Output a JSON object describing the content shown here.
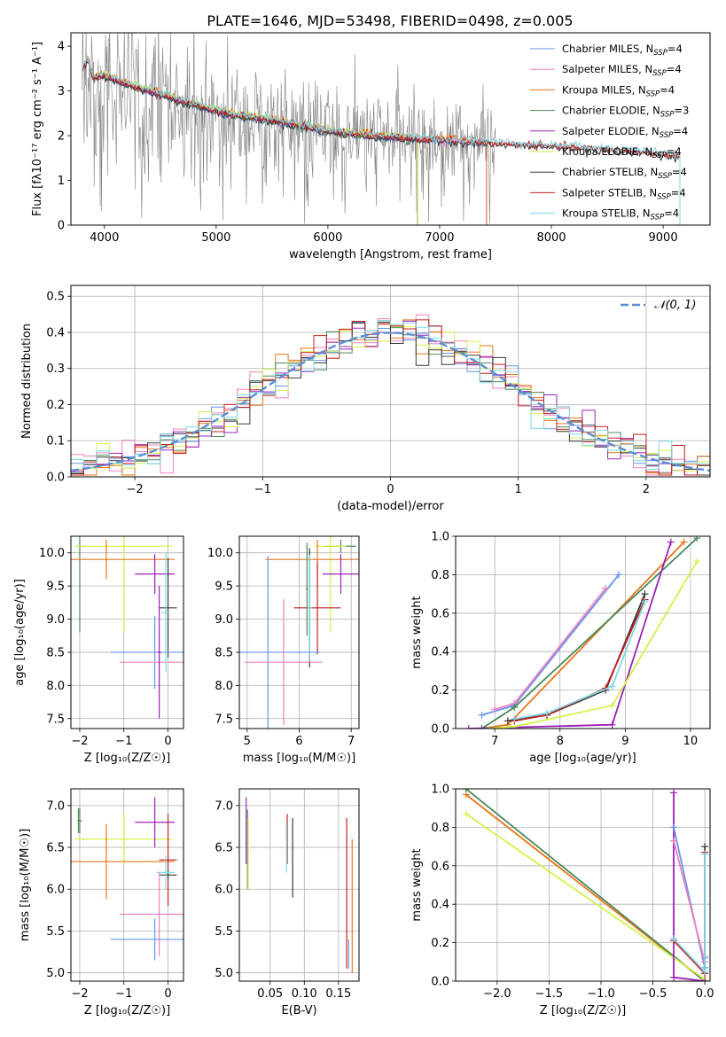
{
  "figure_title": "PLATE=1646, MJD=53498, FIBERID=0498, z=0.005",
  "colors": {
    "data_grey": "#808080",
    "c_chab_miles": "#6495ed",
    "c_salp_miles": "#f080c0",
    "c_krou_miles": "#e8761a",
    "c_chab_elod": "#4a8a5a",
    "c_salp_elod": "#9a22b8",
    "c_krou_elod": "#d4f24c",
    "c_chab_stel": "#3a3a3a",
    "c_salp_stel": "#c41f1f",
    "c_krou_stel": "#7fd8e6",
    "gauss": "#5a8fd8"
  },
  "chart_data": [
    {
      "id": "spectrum",
      "type": "line",
      "title": "PLATE=1646, MJD=53498, FIBERID=0498, z=0.005",
      "xlabel": "wavelength [Angstrom, rest frame]",
      "ylabel": "Flux [fλ10⁻¹⁷ erg cm⁻² s⁻¹ A⁻¹]",
      "xlim": [
        3700,
        9420
      ],
      "ylim": [
        0,
        4.3
      ],
      "xticks": [
        "4000",
        "5000",
        "6000",
        "7000",
        "8000",
        "9000"
      ],
      "yticks": [
        "0",
        "1",
        "2",
        "3",
        "4"
      ],
      "data_x": [
        3800,
        3900,
        4000,
        4200,
        4400,
        4600,
        4800,
        5000,
        5200,
        5500,
        5800,
        6000,
        6300,
        6600,
        6800,
        7000,
        7200,
        7400,
        7600,
        7800,
        8000,
        8300,
        8600,
        8900,
        9150
      ],
      "data_y": [
        3.3,
        3.1,
        3.3,
        3.0,
        2.9,
        2.75,
        2.6,
        2.45,
        2.35,
        2.3,
        2.15,
        2.05,
        2.0,
        1.95,
        1.9,
        1.87,
        1.85,
        1.82,
        1.8,
        1.78,
        1.75,
        1.72,
        1.65,
        1.6,
        1.5
      ],
      "model_x": [
        3800,
        3850,
        3900,
        4000,
        4200,
        4400,
        4600,
        4800,
        5000,
        5200,
        5500,
        5800,
        6000,
        6300,
        6600,
        6800,
        7000,
        7200,
        7400,
        7600,
        7800,
        8000,
        8300,
        8600,
        8900,
        9150
      ],
      "model_y": [
        3.5,
        3.7,
        3.3,
        3.35,
        3.15,
        3.0,
        2.85,
        2.7,
        2.55,
        2.45,
        2.35,
        2.2,
        2.1,
        2.02,
        1.97,
        1.93,
        1.9,
        1.88,
        1.85,
        1.82,
        1.8,
        1.77,
        1.73,
        1.68,
        1.62,
        1.55
      ],
      "series": [
        {
          "name": "Chabrier MILES, N_SSP=4",
          "label": "Chabrier MILES, N",
          "sub": "SSP",
          "tail": "=4",
          "color": "#6495ed",
          "x0": 3800,
          "x1": 7420
        },
        {
          "name": "Salpeter MILES, N_SSP=4",
          "label": "Salpeter MILES, N",
          "sub": "SSP",
          "tail": "=4",
          "color": "#f080c0",
          "x0": 3800,
          "x1": 7420
        },
        {
          "name": "Kroupa MILES, N_SSP=4",
          "label": "Kroupa MILES, N",
          "sub": "SSP",
          "tail": "=4",
          "color": "#e8761a",
          "x0": 3800,
          "x1": 7420
        },
        {
          "name": "Chabrier ELODIE, N_SSP=3",
          "label": "Chabrier ELODIE, N",
          "sub": "SSP",
          "tail": "=3",
          "color": "#4a8a5a",
          "x0": 3900,
          "x1": 6800
        },
        {
          "name": "Salpeter ELODIE, N_SSP=4",
          "label": "Salpeter ELODIE, N",
          "sub": "SSP",
          "tail": "=4",
          "color": "#9a22b8",
          "x0": 3900,
          "x1": 6800
        },
        {
          "name": "Kroupa ELODIE, N_SSP=4",
          "label": "Kroupa ELODIE, N",
          "sub": "SSP",
          "tail": "=4",
          "color": "#d4f24c",
          "x0": 3900,
          "x1": 6800
        },
        {
          "name": "Chabrier STELIB, N_SSP=4",
          "label": "Chabrier STELIB, N",
          "sub": "SSP",
          "tail": "=4",
          "color": "#3a3a3a",
          "x0": 3800,
          "x1": 9150
        },
        {
          "name": "Salpeter STELIB, N_SSP=4",
          "label": "Salpeter STELIB, N",
          "sub": "SSP",
          "tail": "=4",
          "color": "#c41f1f",
          "x0": 3800,
          "x1": 9150
        },
        {
          "name": "Kroupa STELIB, N_SSP=4",
          "label": "Kroupa STELIB, N",
          "sub": "SSP",
          "tail": "=4",
          "color": "#7fd8e6",
          "x0": 3800,
          "x1": 9150
        }
      ]
    },
    {
      "id": "histogram",
      "type": "line",
      "xlabel": "(data-model)/error",
      "ylabel": "Normed distribution",
      "xlim": [
        -2.5,
        2.5
      ],
      "ylim": [
        0,
        0.53
      ],
      "xticks": [
        "−2",
        "−1",
        "0",
        "1",
        "2"
      ],
      "yticks": [
        "0.0",
        "0.1",
        "0.2",
        "0.3",
        "0.4",
        "0.5"
      ],
      "legend": "𝒩(0, 1)",
      "bin_width": 0.1,
      "bin_centers": [
        -2.45,
        -2.35,
        -2.25,
        -2.15,
        -2.05,
        -1.95,
        -1.85,
        -1.75,
        -1.65,
        -1.55,
        -1.45,
        -1.35,
        -1.25,
        -1.15,
        -1.05,
        -0.95,
        -0.85,
        -0.75,
        -0.65,
        -0.55,
        -0.45,
        -0.35,
        -0.25,
        -0.15,
        -0.05,
        0.05,
        0.15,
        0.25,
        0.35,
        0.45,
        0.55,
        0.65,
        0.75,
        0.85,
        0.95,
        1.05,
        1.15,
        1.25,
        1.35,
        1.45,
        1.55,
        1.65,
        1.75,
        1.85,
        1.95,
        2.05,
        2.15,
        2.25,
        2.35,
        2.45
      ],
      "gauss_curve": "normal"
    },
    {
      "id": "age_Z",
      "type": "scatter",
      "xlabel": "Z [log₁₀(Z/Z☉)]",
      "ylabel": "age  [log₁₀(age/yr)]",
      "xlim": [
        -2.2,
        0.35
      ],
      "ylim": [
        7.35,
        10.25
      ],
      "xticks": [
        "−2",
        "−1",
        "0"
      ],
      "yticks": [
        "7.5",
        "8.0",
        "8.5",
        "9.0",
        "9.5",
        "10.0"
      ],
      "points": [
        {
          "color": "#4a8a5a",
          "x": -2.0,
          "xerr": 0.05,
          "y": 10.1,
          "yerr": 1.3,
          "xhalf": 3.0
        },
        {
          "color": "#d4f24c",
          "x": -1.0,
          "xerr": 1.1,
          "y": 10.1,
          "yerr": 1.3
        },
        {
          "color": "#e8761a",
          "x": -1.4,
          "xerr": 1.55,
          "y": 9.9,
          "yerr": 0.3
        },
        {
          "color": "#9a22b8",
          "x": -0.3,
          "xerr": 0.45,
          "y": 9.68,
          "yerr": 0.3
        },
        {
          "color": "#3a3a3a",
          "x": 0.0,
          "xerr": 0.2,
          "y": 9.17,
          "yerr": 0.75
        },
        {
          "color": "#6495ed",
          "x": -0.3,
          "xerr": 1.0,
          "y": 8.5,
          "yerr": 0.55
        },
        {
          "color": "#f080c0",
          "x": -0.2,
          "xerr": 0.9,
          "y": 8.35,
          "yerr": 0.4
        },
        {
          "color": "#7fd8e6",
          "x": -0.05,
          "xerr": 0.1,
          "y": 9.1,
          "yerr": 0.9
        },
        {
          "color": "#9a22b8",
          "x": -0.2,
          "xerr": 0.05,
          "y": 8.5,
          "yerr": 1.0
        }
      ]
    },
    {
      "id": "age_mass",
      "type": "scatter",
      "xlabel": "mass [log₁₀(M/M☉)]",
      "xlim": [
        4.85,
        7.15
      ],
      "ylim": [
        7.35,
        10.25
      ],
      "xticks": [
        "5",
        "6",
        "7"
      ],
      "yticks": [
        "7.5",
        "8.0",
        "8.5",
        "9.0",
        "9.5",
        "10.0"
      ],
      "points": [
        {
          "color": "#4a8a5a",
          "x": 6.8,
          "xerr": 0.3,
          "y": 10.1,
          "yerr": 0.1
        },
        {
          "color": "#d4f24c",
          "x": 6.6,
          "xerr": 0.3,
          "y": 10.1,
          "yerr": 1.3
        },
        {
          "color": "#e8761a",
          "x": 6.35,
          "xerr": 1.0,
          "y": 9.9,
          "yerr": 0.3
        },
        {
          "color": "#9a22b8",
          "x": 6.8,
          "xerr": 0.35,
          "y": 9.68,
          "yerr": 0.3
        },
        {
          "color": "#c41f1f",
          "x": 6.35,
          "xerr": 0.45,
          "y": 9.17,
          "yerr": 0.7
        },
        {
          "color": "#3a3a3a",
          "x": 6.2,
          "xerr": 0.05,
          "y": 9.17,
          "yerr": 0.9
        },
        {
          "color": "#7fd8e6",
          "x": 6.2,
          "xerr": 0.05,
          "y": 9.17,
          "yerr": 0.8
        },
        {
          "color": "#6495ed",
          "x": 5.4,
          "xerr": 1.0,
          "y": 8.5,
          "yerr": 1.45
        },
        {
          "color": "#f080c0",
          "x": 5.7,
          "xerr": 0.75,
          "y": 8.35,
          "yerr": 0.95
        },
        {
          "color": "#4a8a5a",
          "x": 6.15,
          "xerr": 0.02,
          "y": 9.45,
          "yerr": 0.7
        }
      ]
    },
    {
      "id": "massweight_age",
      "type": "line",
      "xlabel": "age  [log₁₀(age/yr)]",
      "ylabel": "mass weight",
      "xlim": [
        6.4,
        10.3
      ],
      "ylim": [
        0,
        1
      ],
      "xticks": [
        "7",
        "8",
        "9",
        "10"
      ],
      "yticks": [
        "0.0",
        "0.2",
        "0.4",
        "0.6",
        "0.8",
        "1.0"
      ],
      "series": [
        {
          "color": "#6495ed",
          "x": [
            6.8,
            7.3,
            8.9
          ],
          "y": [
            0.07,
            0.12,
            0.8
          ]
        },
        {
          "color": "#f080c0",
          "x": [
            7.0,
            7.3,
            8.7
          ],
          "y": [
            0.1,
            0.13,
            0.73
          ]
        },
        {
          "color": "#e8761a",
          "x": [
            6.8,
            7.2,
            9.9
          ],
          "y": [
            0.0,
            0.02,
            0.97
          ]
        },
        {
          "color": "#4a8a5a",
          "x": [
            6.8,
            7.3,
            10.1
          ],
          "y": [
            0.0,
            0.11,
            0.99
          ]
        },
        {
          "color": "#9a22b8",
          "x": [
            6.6,
            8.8,
            9.7
          ],
          "y": [
            0.0,
            0.02,
            0.97
          ]
        },
        {
          "color": "#d4f24c",
          "x": [
            6.9,
            7.3,
            8.8,
            10.1
          ],
          "y": [
            0.0,
            0.01,
            0.12,
            0.87
          ]
        },
        {
          "color": "#3a3a3a",
          "x": [
            7.2,
            7.8,
            8.7,
            9.3
          ],
          "y": [
            0.04,
            0.07,
            0.2,
            0.7
          ]
        },
        {
          "color": "#c41f1f",
          "x": [
            7.3,
            7.8,
            8.7,
            9.3
          ],
          "y": [
            0.04,
            0.07,
            0.21,
            0.67
          ]
        },
        {
          "color": "#7fd8e6",
          "x": [
            7.3,
            7.8,
            8.8,
            9.3
          ],
          "y": [
            0.05,
            0.08,
            0.22,
            0.66
          ]
        }
      ]
    },
    {
      "id": "mass_Z",
      "type": "scatter",
      "xlabel": "Z [log₁₀(Z/Z☉)]",
      "ylabel": "mass [log₁₀(M/M☉)]",
      "xlim": [
        -2.2,
        0.35
      ],
      "ylim": [
        4.9,
        7.2
      ],
      "xticks": [
        "−2",
        "−1",
        "0"
      ],
      "yticks": [
        "5.0",
        "5.5",
        "6.0",
        "6.5",
        "7.0"
      ],
      "points": [
        {
          "color": "#4a8a5a",
          "x": -2.0,
          "xerr": 0.05,
          "y": 6.82,
          "yerr": 0.15
        },
        {
          "color": "#4a8a5a",
          "x": -2.03,
          "xerr": 0.02,
          "y": 6.82,
          "yerr": 0.15
        },
        {
          "color": "#d4f24c",
          "x": -1.0,
          "xerr": 1.1,
          "y": 6.6,
          "yerr": 0.3
        },
        {
          "color": "#e8761a",
          "x": -1.4,
          "xerr": 1.55,
          "y": 6.33,
          "yerr": 0.45
        },
        {
          "color": "#9a22b8",
          "x": -0.3,
          "xerr": 0.45,
          "y": 6.8,
          "yerr": 0.3
        },
        {
          "color": "#c41f1f",
          "x": 0.0,
          "xerr": 0.2,
          "y": 6.35,
          "yerr": 0.55
        },
        {
          "color": "#3a3a3a",
          "x": 0.0,
          "xerr": 0.2,
          "y": 6.17,
          "yerr": 0.05
        },
        {
          "color": "#7fd8e6",
          "x": -0.05,
          "xerr": 0.2,
          "y": 6.2,
          "yerr": 0.2
        },
        {
          "color": "#6495ed",
          "x": -0.3,
          "xerr": 1.0,
          "y": 5.4,
          "yerr": 0.25
        },
        {
          "color": "#f080c0",
          "x": -0.2,
          "xerr": 0.9,
          "y": 5.7,
          "yerr": 0.5
        }
      ]
    },
    {
      "id": "ebv",
      "type": "scatter",
      "xlabel": "E(B-V)",
      "xlim": [
        0.005,
        0.18
      ],
      "ylim": [
        4.9,
        7.2
      ],
      "xticks": [
        "0.05",
        "0.10",
        "0.15"
      ],
      "yticks": [
        "5.0",
        "5.5",
        "6.0",
        "6.5",
        "7.0"
      ],
      "bars": [
        {
          "color": "#9a22b8",
          "x": 0.015,
          "y0": 6.3,
          "y1": 7.1
        },
        {
          "color": "#4a8a5a",
          "x": 0.017,
          "y0": 6.0,
          "y1": 6.95
        },
        {
          "color": "#d4f24c",
          "x": 0.018,
          "y0": 6.0,
          "y1": 6.85
        },
        {
          "color": "#c41f1f",
          "x": 0.075,
          "y0": 6.3,
          "y1": 6.9
        },
        {
          "color": "#7fd8e6",
          "x": 0.074,
          "y0": 6.2,
          "y1": 6.8
        },
        {
          "color": "#3a3a3a",
          "x": 0.083,
          "y0": 5.9,
          "y1": 6.85
        },
        {
          "color": "#c41f1f",
          "x": 0.162,
          "y0": 5.05,
          "y1": 6.85
        },
        {
          "color": "#e8761a",
          "x": 0.17,
          "y0": 5.0,
          "y1": 6.6
        },
        {
          "color": "#6495ed",
          "x": 0.165,
          "y0": 5.05,
          "y1": 5.4
        }
      ]
    },
    {
      "id": "massweight_Z",
      "type": "line",
      "xlabel": "Z [log₁₀(Z/Z☉)]",
      "ylabel": "mass weight",
      "xlim": [
        -2.4,
        0.05
      ],
      "ylim": [
        0,
        1
      ],
      "xticks": [
        "−2.0",
        "−1.5",
        "−1.0",
        "−0.5",
        "0.0"
      ],
      "yticks": [
        "0.0",
        "0.2",
        "0.4",
        "0.6",
        "0.8",
        "1.0"
      ],
      "series": [
        {
          "color": "#e8761a",
          "x": [
            -2.3,
            0.0
          ],
          "y": [
            0.97,
            0.0
          ]
        },
        {
          "color": "#4a8a5a",
          "x": [
            -2.3,
            0.0
          ],
          "y": [
            1.0,
            0.0
          ]
        },
        {
          "color": "#d4f24c",
          "x": [
            -2.3,
            0.0
          ],
          "y": [
            0.87,
            0.01
          ]
        },
        {
          "color": "#3a3a3a",
          "x": [
            -0.3,
            0.0,
            0.0
          ],
          "y": [
            0.22,
            0.04,
            0.7
          ]
        },
        {
          "color": "#9a22b8",
          "x": [
            -0.3,
            -0.3,
            0.0
          ],
          "y": [
            0.98,
            0.02,
            0.0
          ]
        },
        {
          "color": "#6495ed",
          "x": [
            -0.3,
            0.0,
            0.0
          ],
          "y": [
            0.8,
            0.07,
            0.12
          ]
        },
        {
          "color": "#f080c0",
          "x": [
            -0.3,
            0.0,
            0.0
          ],
          "y": [
            0.73,
            0.1,
            0.13
          ]
        },
        {
          "color": "#c41f1f",
          "x": [
            -0.3,
            0.0,
            0.0
          ],
          "y": [
            0.21,
            0.04,
            0.67
          ]
        },
        {
          "color": "#7fd8e6",
          "x": [
            -0.3,
            0.0,
            0.0
          ],
          "y": [
            0.22,
            0.05,
            0.66
          ]
        }
      ]
    }
  ]
}
